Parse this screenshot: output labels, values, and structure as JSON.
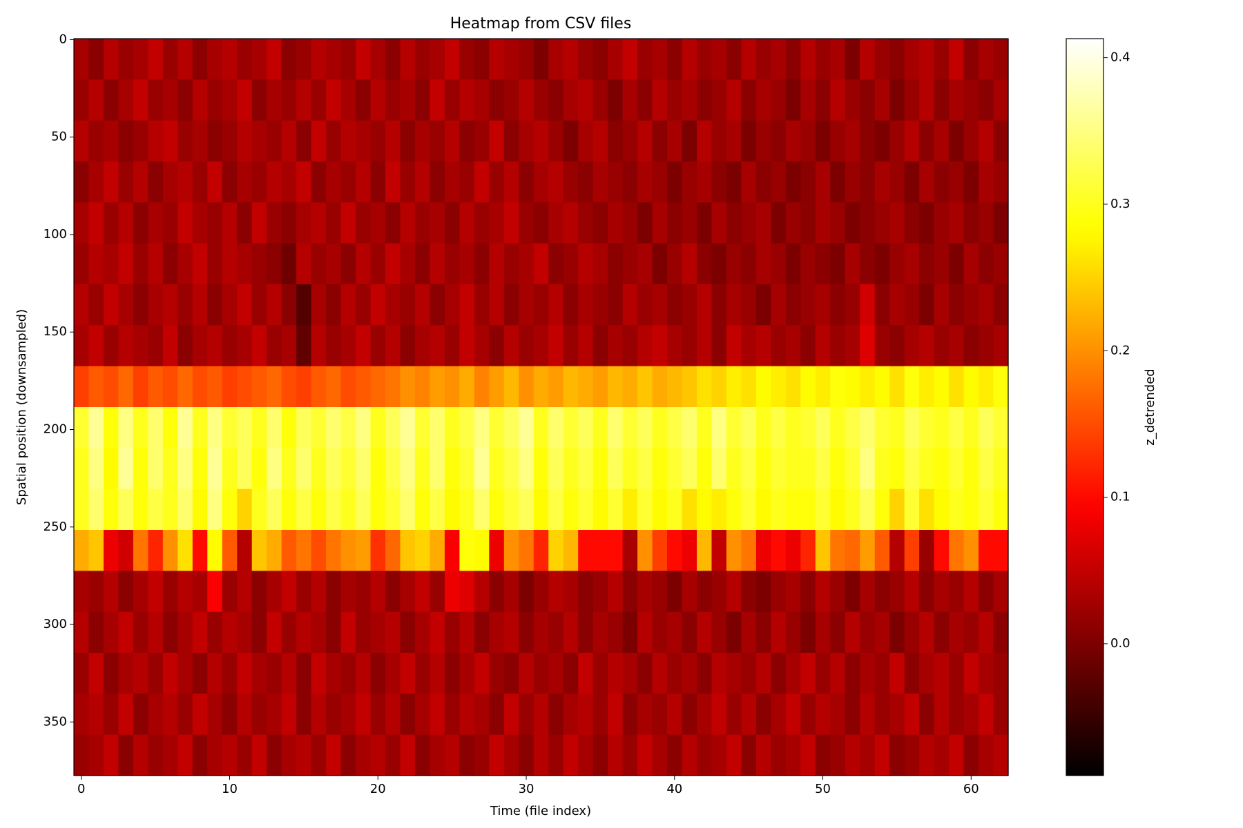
{
  "chart_data": {
    "type": "heatmap",
    "title": "Heatmap from CSV files",
    "xlabel": "Time (file index)",
    "ylabel": "Spatial position (downsampled)",
    "colorbar_label": "z_detrended",
    "colormap": "hot",
    "xlim": [
      -0.5,
      62.5
    ],
    "ylim": [
      377.5,
      -0.5
    ],
    "xticks": [
      0,
      10,
      20,
      30,
      40,
      50,
      60
    ],
    "yticks": [
      0,
      50,
      100,
      150,
      200,
      250,
      300,
      350
    ],
    "clim": [
      -0.09,
      0.413
    ],
    "cticks": [
      {
        "value": 0,
        "label": "0.0"
      },
      0.1,
      0.2,
      0.3,
      0.4
    ],
    "z": [
      [
        0.03,
        0.01,
        0.04,
        0.02,
        0.03,
        0.05,
        0.02,
        0.04,
        0.01,
        0.03,
        0.04,
        0.02,
        0.03,
        0.05,
        0.01,
        0.02,
        0.04,
        0.03,
        0.02,
        0.05,
        0.03,
        0.01,
        0.04,
        0.02,
        0.03,
        0.05,
        0.02,
        0.01,
        0.04,
        0.03,
        0.02,
        0.0,
        0.03,
        0.04,
        0.02,
        0.01,
        0.03,
        0.05,
        0.02,
        0.03,
        0.01,
        0.04,
        0.02,
        0.03,
        0.01,
        0.04,
        0.02,
        0.03,
        0.01,
        0.04,
        0.02,
        0.03,
        0.0,
        0.04,
        0.02,
        0.01,
        0.03,
        0.04,
        0.02,
        0.05,
        0.01,
        0.03,
        0.02
      ],
      [
        0.02,
        0.04,
        0.01,
        0.03,
        0.05,
        0.02,
        0.03,
        0.01,
        0.04,
        0.02,
        0.03,
        0.05,
        0.01,
        0.03,
        0.02,
        0.04,
        0.02,
        0.05,
        0.03,
        0.01,
        0.04,
        0.02,
        0.03,
        0.01,
        0.05,
        0.02,
        0.04,
        0.03,
        0.01,
        0.02,
        0.04,
        0.02,
        0.01,
        0.03,
        0.04,
        0.02,
        0.0,
        0.03,
        0.01,
        0.04,
        0.02,
        0.03,
        0.01,
        0.02,
        0.04,
        0.01,
        0.03,
        0.02,
        0.0,
        0.03,
        0.01,
        0.04,
        0.02,
        0.01,
        0.03,
        0.0,
        0.02,
        0.04,
        0.01,
        0.03,
        0.02,
        0.01,
        0.03
      ],
      [
        0.04,
        0.02,
        0.03,
        0.01,
        0.02,
        0.04,
        0.05,
        0.02,
        0.03,
        0.01,
        0.02,
        0.04,
        0.03,
        0.02,
        0.04,
        0.01,
        0.05,
        0.02,
        0.04,
        0.03,
        0.02,
        0.04,
        0.01,
        0.03,
        0.02,
        0.04,
        0.01,
        0.02,
        0.05,
        0.01,
        0.03,
        0.04,
        0.02,
        0.0,
        0.03,
        0.04,
        0.01,
        0.02,
        0.04,
        0.01,
        0.03,
        0.0,
        0.04,
        0.02,
        0.03,
        0.0,
        0.02,
        0.01,
        0.03,
        0.02,
        0.0,
        0.02,
        0.03,
        0.01,
        0.0,
        0.02,
        0.04,
        0.01,
        0.03,
        0.0,
        0.02,
        0.04,
        0.01
      ],
      [
        0.01,
        0.03,
        0.05,
        0.02,
        0.04,
        0.01,
        0.03,
        0.04,
        0.02,
        0.05,
        0.01,
        0.03,
        0.02,
        0.04,
        0.03,
        0.05,
        0.01,
        0.03,
        0.02,
        0.04,
        0.01,
        0.05,
        0.02,
        0.04,
        0.01,
        0.03,
        0.02,
        0.05,
        0.02,
        0.04,
        0.01,
        0.03,
        0.04,
        0.02,
        0.01,
        0.03,
        0.02,
        0.01,
        0.03,
        0.02,
        0.0,
        0.02,
        0.03,
        0.01,
        0.0,
        0.03,
        0.01,
        0.02,
        0.0,
        0.01,
        0.03,
        0.0,
        0.02,
        0.01,
        0.03,
        0.02,
        0.0,
        0.03,
        0.01,
        0.02,
        0.0,
        0.03,
        0.02
      ],
      [
        0.03,
        0.05,
        0.02,
        0.04,
        0.01,
        0.03,
        0.02,
        0.05,
        0.03,
        0.02,
        0.04,
        0.01,
        0.05,
        0.02,
        0.01,
        0.03,
        0.04,
        0.02,
        0.05,
        0.02,
        0.03,
        0.01,
        0.04,
        0.02,
        0.03,
        0.01,
        0.04,
        0.02,
        0.03,
        0.05,
        0.02,
        0.01,
        0.03,
        0.04,
        0.02,
        0.01,
        0.03,
        0.02,
        0.0,
        0.03,
        0.01,
        0.02,
        0.0,
        0.03,
        0.01,
        0.02,
        0.03,
        0.0,
        0.02,
        0.01,
        0.03,
        0.02,
        0.0,
        0.01,
        0.02,
        0.03,
        0.01,
        0.0,
        0.02,
        0.03,
        0.01,
        0.02,
        0.0
      ],
      [
        0.02,
        0.04,
        0.03,
        0.05,
        0.02,
        0.04,
        0.01,
        0.03,
        0.05,
        0.02,
        0.04,
        0.03,
        0.02,
        0.01,
        -0.01,
        0.04,
        0.02,
        0.03,
        0.01,
        0.04,
        0.02,
        0.05,
        0.03,
        0.01,
        0.04,
        0.02,
        0.03,
        0.01,
        0.04,
        0.02,
        0.03,
        0.05,
        0.01,
        0.02,
        0.04,
        0.03,
        0.01,
        0.02,
        0.03,
        0.0,
        0.02,
        0.04,
        0.01,
        0.0,
        0.02,
        0.01,
        0.03,
        0.02,
        0.0,
        0.02,
        0.01,
        0.0,
        0.03,
        0.01,
        0.0,
        0.02,
        0.03,
        0.01,
        0.02,
        0.0,
        0.03,
        0.01,
        0.02
      ],
      [
        0.04,
        0.02,
        0.05,
        0.03,
        0.01,
        0.03,
        0.04,
        0.02,
        0.04,
        0.01,
        0.03,
        0.05,
        0.02,
        0.04,
        0.01,
        -0.03,
        0.03,
        0.01,
        0.04,
        0.02,
        0.05,
        0.03,
        0.02,
        0.04,
        0.01,
        0.03,
        0.05,
        0.02,
        0.04,
        0.01,
        0.03,
        0.02,
        0.04,
        0.01,
        0.03,
        0.02,
        0.01,
        0.04,
        0.02,
        0.03,
        0.01,
        0.02,
        0.04,
        0.01,
        0.03,
        0.02,
        0.0,
        0.03,
        0.01,
        0.02,
        0.03,
        0.01,
        0.02,
        0.06,
        0.01,
        0.03,
        0.02,
        0.0,
        0.03,
        0.01,
        0.02,
        0.03,
        0.01
      ],
      [
        0.03,
        0.05,
        0.02,
        0.04,
        0.03,
        0.02,
        0.05,
        0.01,
        0.03,
        0.04,
        0.02,
        0.03,
        0.05,
        0.02,
        0.03,
        -0.02,
        0.04,
        0.02,
        0.03,
        0.05,
        0.02,
        0.04,
        0.01,
        0.03,
        0.04,
        0.02,
        0.05,
        0.03,
        0.01,
        0.04,
        0.02,
        0.03,
        0.05,
        0.02,
        0.04,
        0.01,
        0.03,
        0.02,
        0.04,
        0.05,
        0.03,
        0.02,
        0.04,
        0.01,
        0.05,
        0.03,
        0.04,
        0.02,
        0.03,
        0.01,
        0.04,
        0.02,
        0.03,
        0.07,
        0.02,
        0.01,
        0.03,
        0.04,
        0.02,
        0.03,
        0.01,
        0.02,
        0.03
      ],
      [
        0.14,
        0.16,
        0.15,
        0.17,
        0.14,
        0.16,
        0.15,
        0.17,
        0.15,
        0.16,
        0.14,
        0.15,
        0.16,
        0.17,
        0.15,
        0.14,
        0.16,
        0.17,
        0.15,
        0.16,
        0.17,
        0.18,
        0.2,
        0.19,
        0.21,
        0.2,
        0.22,
        0.19,
        0.21,
        0.23,
        0.2,
        0.22,
        0.21,
        0.23,
        0.22,
        0.21,
        0.23,
        0.22,
        0.24,
        0.22,
        0.23,
        0.24,
        0.26,
        0.25,
        0.27,
        0.26,
        0.28,
        0.27,
        0.26,
        0.28,
        0.27,
        0.29,
        0.28,
        0.27,
        0.28,
        0.26,
        0.29,
        0.27,
        0.28,
        0.26,
        0.28,
        0.27,
        0.29
      ],
      [
        0.31,
        0.36,
        0.29,
        0.35,
        0.3,
        0.34,
        0.29,
        0.36,
        0.3,
        0.35,
        0.31,
        0.33,
        0.3,
        0.34,
        0.29,
        0.33,
        0.31,
        0.34,
        0.32,
        0.35,
        0.3,
        0.33,
        0.36,
        0.31,
        0.34,
        0.3,
        0.32,
        0.35,
        0.31,
        0.33,
        0.36,
        0.3,
        0.34,
        0.31,
        0.33,
        0.3,
        0.34,
        0.31,
        0.33,
        0.3,
        0.32,
        0.34,
        0.3,
        0.35,
        0.31,
        0.33,
        0.3,
        0.32,
        0.3,
        0.31,
        0.33,
        0.3,
        0.32,
        0.34,
        0.31,
        0.3,
        0.33,
        0.31,
        0.3,
        0.32,
        0.3,
        0.33,
        0.31
      ],
      [
        0.3,
        0.35,
        0.28,
        0.36,
        0.29,
        0.34,
        0.3,
        0.35,
        0.29,
        0.36,
        0.3,
        0.33,
        0.29,
        0.35,
        0.3,
        0.34,
        0.3,
        0.33,
        0.31,
        0.34,
        0.29,
        0.32,
        0.35,
        0.3,
        0.34,
        0.29,
        0.31,
        0.36,
        0.3,
        0.32,
        0.35,
        0.29,
        0.33,
        0.3,
        0.32,
        0.29,
        0.33,
        0.3,
        0.32,
        0.29,
        0.31,
        0.33,
        0.29,
        0.34,
        0.3,
        0.32,
        0.29,
        0.31,
        0.3,
        0.3,
        0.32,
        0.29,
        0.31,
        0.35,
        0.3,
        0.29,
        0.32,
        0.3,
        0.29,
        0.31,
        0.29,
        0.32,
        0.3
      ],
      [
        0.3,
        0.34,
        0.29,
        0.33,
        0.29,
        0.32,
        0.3,
        0.34,
        0.28,
        0.35,
        0.29,
        0.25,
        0.3,
        0.33,
        0.29,
        0.32,
        0.29,
        0.32,
        0.3,
        0.33,
        0.29,
        0.31,
        0.34,
        0.29,
        0.32,
        0.28,
        0.3,
        0.34,
        0.29,
        0.31,
        0.33,
        0.28,
        0.32,
        0.29,
        0.31,
        0.28,
        0.31,
        0.27,
        0.31,
        0.28,
        0.3,
        0.26,
        0.28,
        0.27,
        0.29,
        0.31,
        0.28,
        0.3,
        0.29,
        0.29,
        0.31,
        0.28,
        0.3,
        0.33,
        0.29,
        0.25,
        0.31,
        0.26,
        0.28,
        0.3,
        0.29,
        0.31,
        0.29
      ],
      [
        0.22,
        0.24,
        0.08,
        0.06,
        0.18,
        0.12,
        0.2,
        0.26,
        0.1,
        0.28,
        0.16,
        0.04,
        0.24,
        0.22,
        0.16,
        0.18,
        0.15,
        0.18,
        0.2,
        0.21,
        0.13,
        0.17,
        0.24,
        0.25,
        0.22,
        0.09,
        0.29,
        0.28,
        0.08,
        0.2,
        0.18,
        0.12,
        0.25,
        0.23,
        0.1,
        0.1,
        0.1,
        0.03,
        0.2,
        0.14,
        0.1,
        0.08,
        0.23,
        0.05,
        0.2,
        0.18,
        0.08,
        0.1,
        0.08,
        0.12,
        0.24,
        0.18,
        0.17,
        0.21,
        0.16,
        0.04,
        0.14,
        0.02,
        0.1,
        0.18,
        0.2,
        0.1,
        0.1
      ],
      [
        0.03,
        0.02,
        0.04,
        0.01,
        0.03,
        0.05,
        0.02,
        0.04,
        0.03,
        0.09,
        0.02,
        0.04,
        0.01,
        0.03,
        0.05,
        0.02,
        0.04,
        0.01,
        0.03,
        0.02,
        0.04,
        0.01,
        0.03,
        0.05,
        0.02,
        0.08,
        0.07,
        0.04,
        0.01,
        0.03,
        0.0,
        0.02,
        0.04,
        0.03,
        0.01,
        0.02,
        0.04,
        0.01,
        0.03,
        0.02,
        0.0,
        0.03,
        0.01,
        0.02,
        0.04,
        0.01,
        0.0,
        0.02,
        0.03,
        0.01,
        0.04,
        0.02,
        0.0,
        0.03,
        0.01,
        0.02,
        0.04,
        0.01,
        0.03,
        0.02,
        0.04,
        0.01,
        0.03
      ],
      [
        0.04,
        0.01,
        0.03,
        0.05,
        0.02,
        0.04,
        0.01,
        0.03,
        0.05,
        0.02,
        0.04,
        0.03,
        0.01,
        0.05,
        0.02,
        0.04,
        0.03,
        0.01,
        0.05,
        0.02,
        0.03,
        0.04,
        0.01,
        0.03,
        0.05,
        0.02,
        0.04,
        0.01,
        0.03,
        0.04,
        0.01,
        0.03,
        0.02,
        0.04,
        0.01,
        0.03,
        0.02,
        0.0,
        0.04,
        0.02,
        0.03,
        0.01,
        0.04,
        0.02,
        0.0,
        0.03,
        0.01,
        0.04,
        0.02,
        0.0,
        0.03,
        0.01,
        0.04,
        0.02,
        0.03,
        0.0,
        0.02,
        0.04,
        0.01,
        0.03,
        0.02,
        0.04,
        0.01
      ],
      [
        0.02,
        0.05,
        0.01,
        0.03,
        0.04,
        0.02,
        0.05,
        0.03,
        0.01,
        0.04,
        0.02,
        0.05,
        0.03,
        0.02,
        0.04,
        0.01,
        0.05,
        0.03,
        0.02,
        0.04,
        0.01,
        0.03,
        0.05,
        0.02,
        0.04,
        0.01,
        0.03,
        0.05,
        0.02,
        0.01,
        0.04,
        0.02,
        0.03,
        0.01,
        0.05,
        0.02,
        0.04,
        0.03,
        0.01,
        0.04,
        0.02,
        0.03,
        0.01,
        0.04,
        0.03,
        0.02,
        0.04,
        0.01,
        0.03,
        0.05,
        0.02,
        0.04,
        0.01,
        0.03,
        0.02,
        0.05,
        0.01,
        0.03,
        0.04,
        0.02,
        0.05,
        0.03,
        0.02
      ],
      [
        0.03,
        0.04,
        0.02,
        0.05,
        0.01,
        0.03,
        0.04,
        0.02,
        0.05,
        0.03,
        0.01,
        0.04,
        0.02,
        0.03,
        0.05,
        0.01,
        0.04,
        0.02,
        0.03,
        0.05,
        0.02,
        0.04,
        0.01,
        0.03,
        0.05,
        0.02,
        0.04,
        0.03,
        0.01,
        0.05,
        0.02,
        0.04,
        0.01,
        0.03,
        0.04,
        0.02,
        0.05,
        0.01,
        0.03,
        0.02,
        0.04,
        0.01,
        0.03,
        0.05,
        0.02,
        0.04,
        0.01,
        0.03,
        0.05,
        0.02,
        0.04,
        0.03,
        0.01,
        0.04,
        0.02,
        0.03,
        0.05,
        0.01,
        0.04,
        0.02,
        0.03,
        0.05,
        0.02
      ],
      [
        0.02,
        0.03,
        0.05,
        0.01,
        0.04,
        0.02,
        0.03,
        0.05,
        0.01,
        0.03,
        0.04,
        0.02,
        0.05,
        0.01,
        0.03,
        0.04,
        0.02,
        0.05,
        0.01,
        0.03,
        0.04,
        0.02,
        0.05,
        0.01,
        0.03,
        0.04,
        0.01,
        0.02,
        0.05,
        0.03,
        0.01,
        0.04,
        0.02,
        0.05,
        0.03,
        0.01,
        0.04,
        0.02,
        0.05,
        0.03,
        0.01,
        0.04,
        0.02,
        0.03,
        0.05,
        0.01,
        0.04,
        0.02,
        0.03,
        0.05,
        0.01,
        0.02,
        0.04,
        0.03,
        0.05,
        0.01,
        0.02,
        0.04,
        0.03,
        0.05,
        0.01,
        0.03,
        0.04
      ]
    ]
  }
}
